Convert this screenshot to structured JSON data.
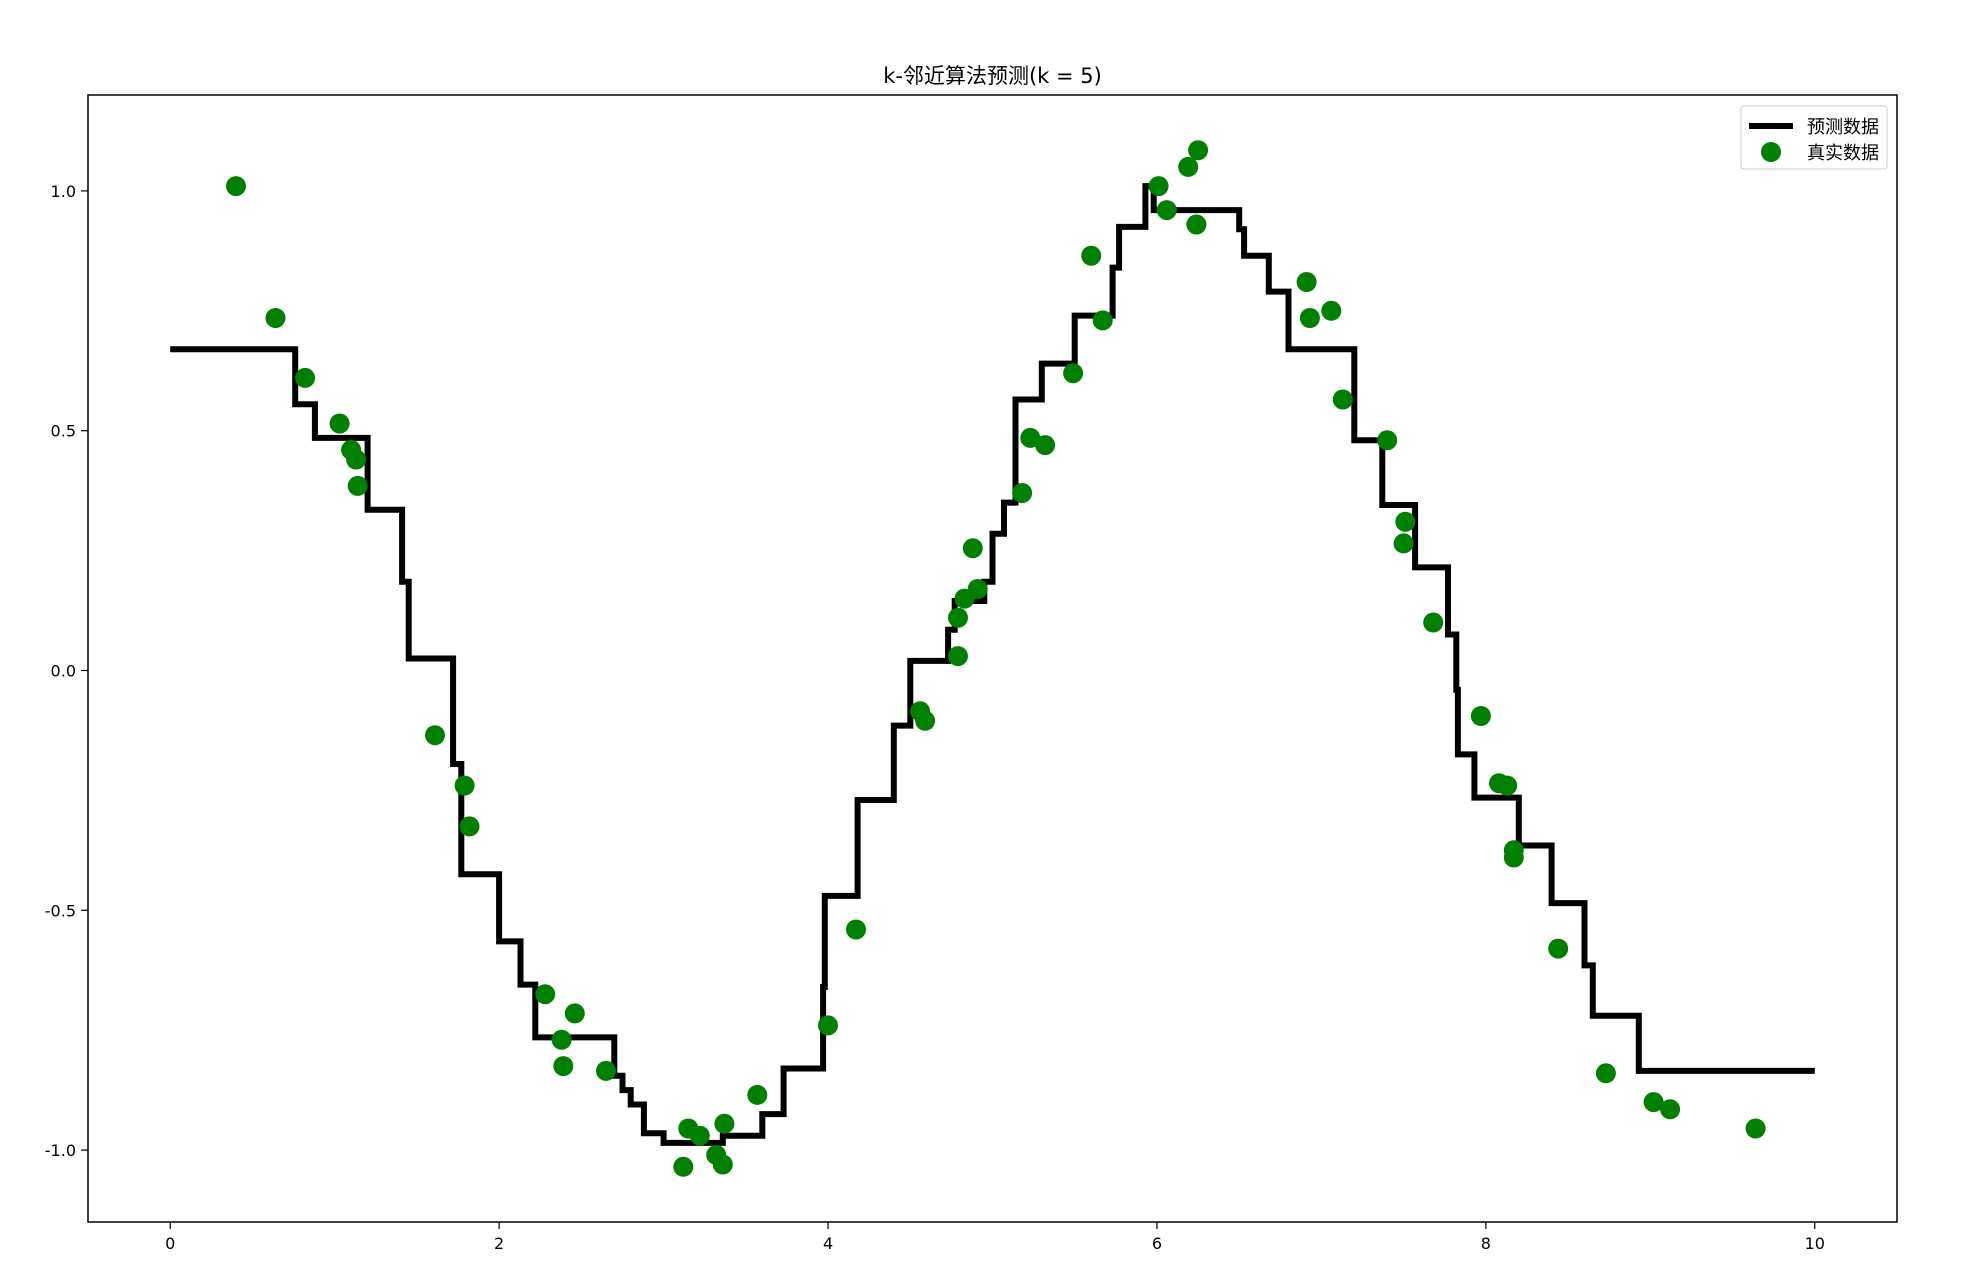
{
  "chart_data": {
    "type": "line",
    "title": "k-邻近算法预测(k = 5)",
    "xlabel": "",
    "ylabel": "",
    "xlim": [
      -0.5,
      10.5
    ],
    "ylim": [
      -1.15,
      1.2
    ],
    "xticks": [
      0,
      2,
      4,
      6,
      8,
      10
    ],
    "yticks": [
      -1.0,
      -0.5,
      0.0,
      0.5,
      1.0
    ],
    "xtick_labels": [
      "0",
      "2",
      "4",
      "6",
      "8",
      "10"
    ],
    "ytick_labels": [
      "-1.0",
      "-0.5",
      "0.0",
      "0.5",
      "1.0"
    ],
    "grid": false,
    "legend": {
      "position": "top-right",
      "entries": [
        {
          "label": "预测数据",
          "marker": "line",
          "color": "#000000"
        },
        {
          "label": "真实数据",
          "marker": "circle",
          "color": "#008000"
        }
      ]
    },
    "series": [
      {
        "name": "预测数据",
        "kind": "step",
        "color": "#000000",
        "x": [
          0.0,
          0.76,
          0.76,
          0.88,
          0.88,
          1.2,
          1.2,
          1.41,
          1.41,
          1.45,
          1.45,
          1.72,
          1.72,
          1.77,
          1.77,
          2.0,
          2.0,
          2.13,
          2.13,
          2.22,
          2.22,
          2.7,
          2.7,
          2.75,
          2.75,
          2.8,
          2.8,
          2.88,
          2.88,
          3.0,
          3.0,
          3.36,
          3.36,
          3.6,
          3.6,
          3.73,
          3.73,
          3.97,
          3.97,
          3.98,
          3.98,
          4.18,
          4.18,
          4.4,
          4.4,
          4.5,
          4.5,
          4.73,
          4.73,
          4.77,
          4.77,
          4.95,
          4.95,
          5.0,
          5.0,
          5.07,
          5.07,
          5.14,
          5.14,
          5.3,
          5.3,
          5.5,
          5.5,
          5.73,
          5.73,
          5.77,
          5.77,
          5.93,
          5.93,
          5.98,
          5.98,
          6.5,
          6.5,
          6.53,
          6.53,
          6.68,
          6.68,
          6.8,
          6.8,
          7.2,
          7.2,
          7.37,
          7.37,
          7.57,
          7.57,
          7.77,
          7.77,
          7.82,
          7.82,
          7.83,
          7.83,
          7.93,
          7.93,
          8.2,
          8.2,
          8.4,
          8.4,
          8.6,
          8.6,
          8.65,
          8.65,
          8.93,
          8.93,
          10.0
        ],
        "y": [
          0.67,
          0.67,
          0.555,
          0.555,
          0.485,
          0.485,
          0.335,
          0.335,
          0.185,
          0.185,
          0.025,
          0.025,
          -0.195,
          -0.195,
          -0.425,
          -0.425,
          -0.565,
          -0.565,
          -0.655,
          -0.655,
          -0.765,
          -0.765,
          -0.845,
          -0.845,
          -0.875,
          -0.875,
          -0.905,
          -0.905,
          -0.965,
          -0.965,
          -0.985,
          -0.985,
          -0.97,
          -0.97,
          -0.925,
          -0.925,
          -0.83,
          -0.83,
          -0.66,
          -0.66,
          -0.47,
          -0.47,
          -0.27,
          -0.27,
          -0.115,
          -0.115,
          0.02,
          0.02,
          0.085,
          0.085,
          0.145,
          0.145,
          0.185,
          0.185,
          0.285,
          0.285,
          0.35,
          0.35,
          0.565,
          0.565,
          0.64,
          0.64,
          0.74,
          0.74,
          0.84,
          0.84,
          0.925,
          0.925,
          1.01,
          1.01,
          0.96,
          0.96,
          0.92,
          0.92,
          0.865,
          0.865,
          0.79,
          0.79,
          0.67,
          0.67,
          0.48,
          0.48,
          0.345,
          0.345,
          0.215,
          0.215,
          0.075,
          0.075,
          -0.04,
          -0.04,
          -0.175,
          -0.175,
          -0.265,
          -0.265,
          -0.365,
          -0.365,
          -0.485,
          -0.485,
          -0.615,
          -0.615,
          -0.72,
          -0.72,
          -0.835,
          -0.835
        ]
      },
      {
        "name": "真实数据",
        "kind": "scatter",
        "color": "#008000",
        "points": [
          [
            0.4,
            1.01
          ],
          [
            0.64,
            0.735
          ],
          [
            0.82,
            0.61
          ],
          [
            1.03,
            0.515
          ],
          [
            1.1,
            0.46
          ],
          [
            1.13,
            0.44
          ],
          [
            1.14,
            0.385
          ],
          [
            1.61,
            -0.135
          ],
          [
            1.79,
            -0.24
          ],
          [
            1.82,
            -0.325
          ],
          [
            2.28,
            -0.675
          ],
          [
            2.38,
            -0.77
          ],
          [
            2.39,
            -0.825
          ],
          [
            2.46,
            -0.715
          ],
          [
            2.65,
            -0.835
          ],
          [
            3.12,
            -1.035
          ],
          [
            3.15,
            -0.955
          ],
          [
            3.22,
            -0.97
          ],
          [
            3.32,
            -1.01
          ],
          [
            3.36,
            -1.03
          ],
          [
            3.37,
            -0.945
          ],
          [
            3.57,
            -0.885
          ],
          [
            4.0,
            -0.74
          ],
          [
            4.17,
            -0.54
          ],
          [
            4.56,
            -0.085
          ],
          [
            4.59,
            -0.105
          ],
          [
            4.79,
            0.03
          ],
          [
            4.79,
            0.11
          ],
          [
            4.83,
            0.15
          ],
          [
            4.88,
            0.255
          ],
          [
            4.91,
            0.17
          ],
          [
            5.18,
            0.37
          ],
          [
            5.23,
            0.485
          ],
          [
            5.32,
            0.47
          ],
          [
            5.49,
            0.62
          ],
          [
            5.6,
            0.865
          ],
          [
            5.67,
            0.73
          ],
          [
            6.01,
            1.01
          ],
          [
            6.06,
            0.96
          ],
          [
            6.19,
            1.05
          ],
          [
            6.24,
            0.93
          ],
          [
            6.25,
            1.085
          ],
          [
            6.91,
            0.81
          ],
          [
            6.93,
            0.735
          ],
          [
            7.06,
            0.75
          ],
          [
            7.13,
            0.565
          ],
          [
            7.4,
            0.48
          ],
          [
            7.51,
            0.31
          ],
          [
            7.5,
            0.265
          ],
          [
            7.68,
            0.1
          ],
          [
            7.97,
            -0.095
          ],
          [
            8.08,
            -0.235
          ],
          [
            8.13,
            -0.24
          ],
          [
            8.17,
            -0.375
          ],
          [
            8.17,
            -0.39
          ],
          [
            8.44,
            -0.58
          ],
          [
            8.73,
            -0.84
          ],
          [
            9.02,
            -0.9
          ],
          [
            9.12,
            -0.915
          ],
          [
            9.64,
            -0.955
          ]
        ]
      }
    ]
  }
}
